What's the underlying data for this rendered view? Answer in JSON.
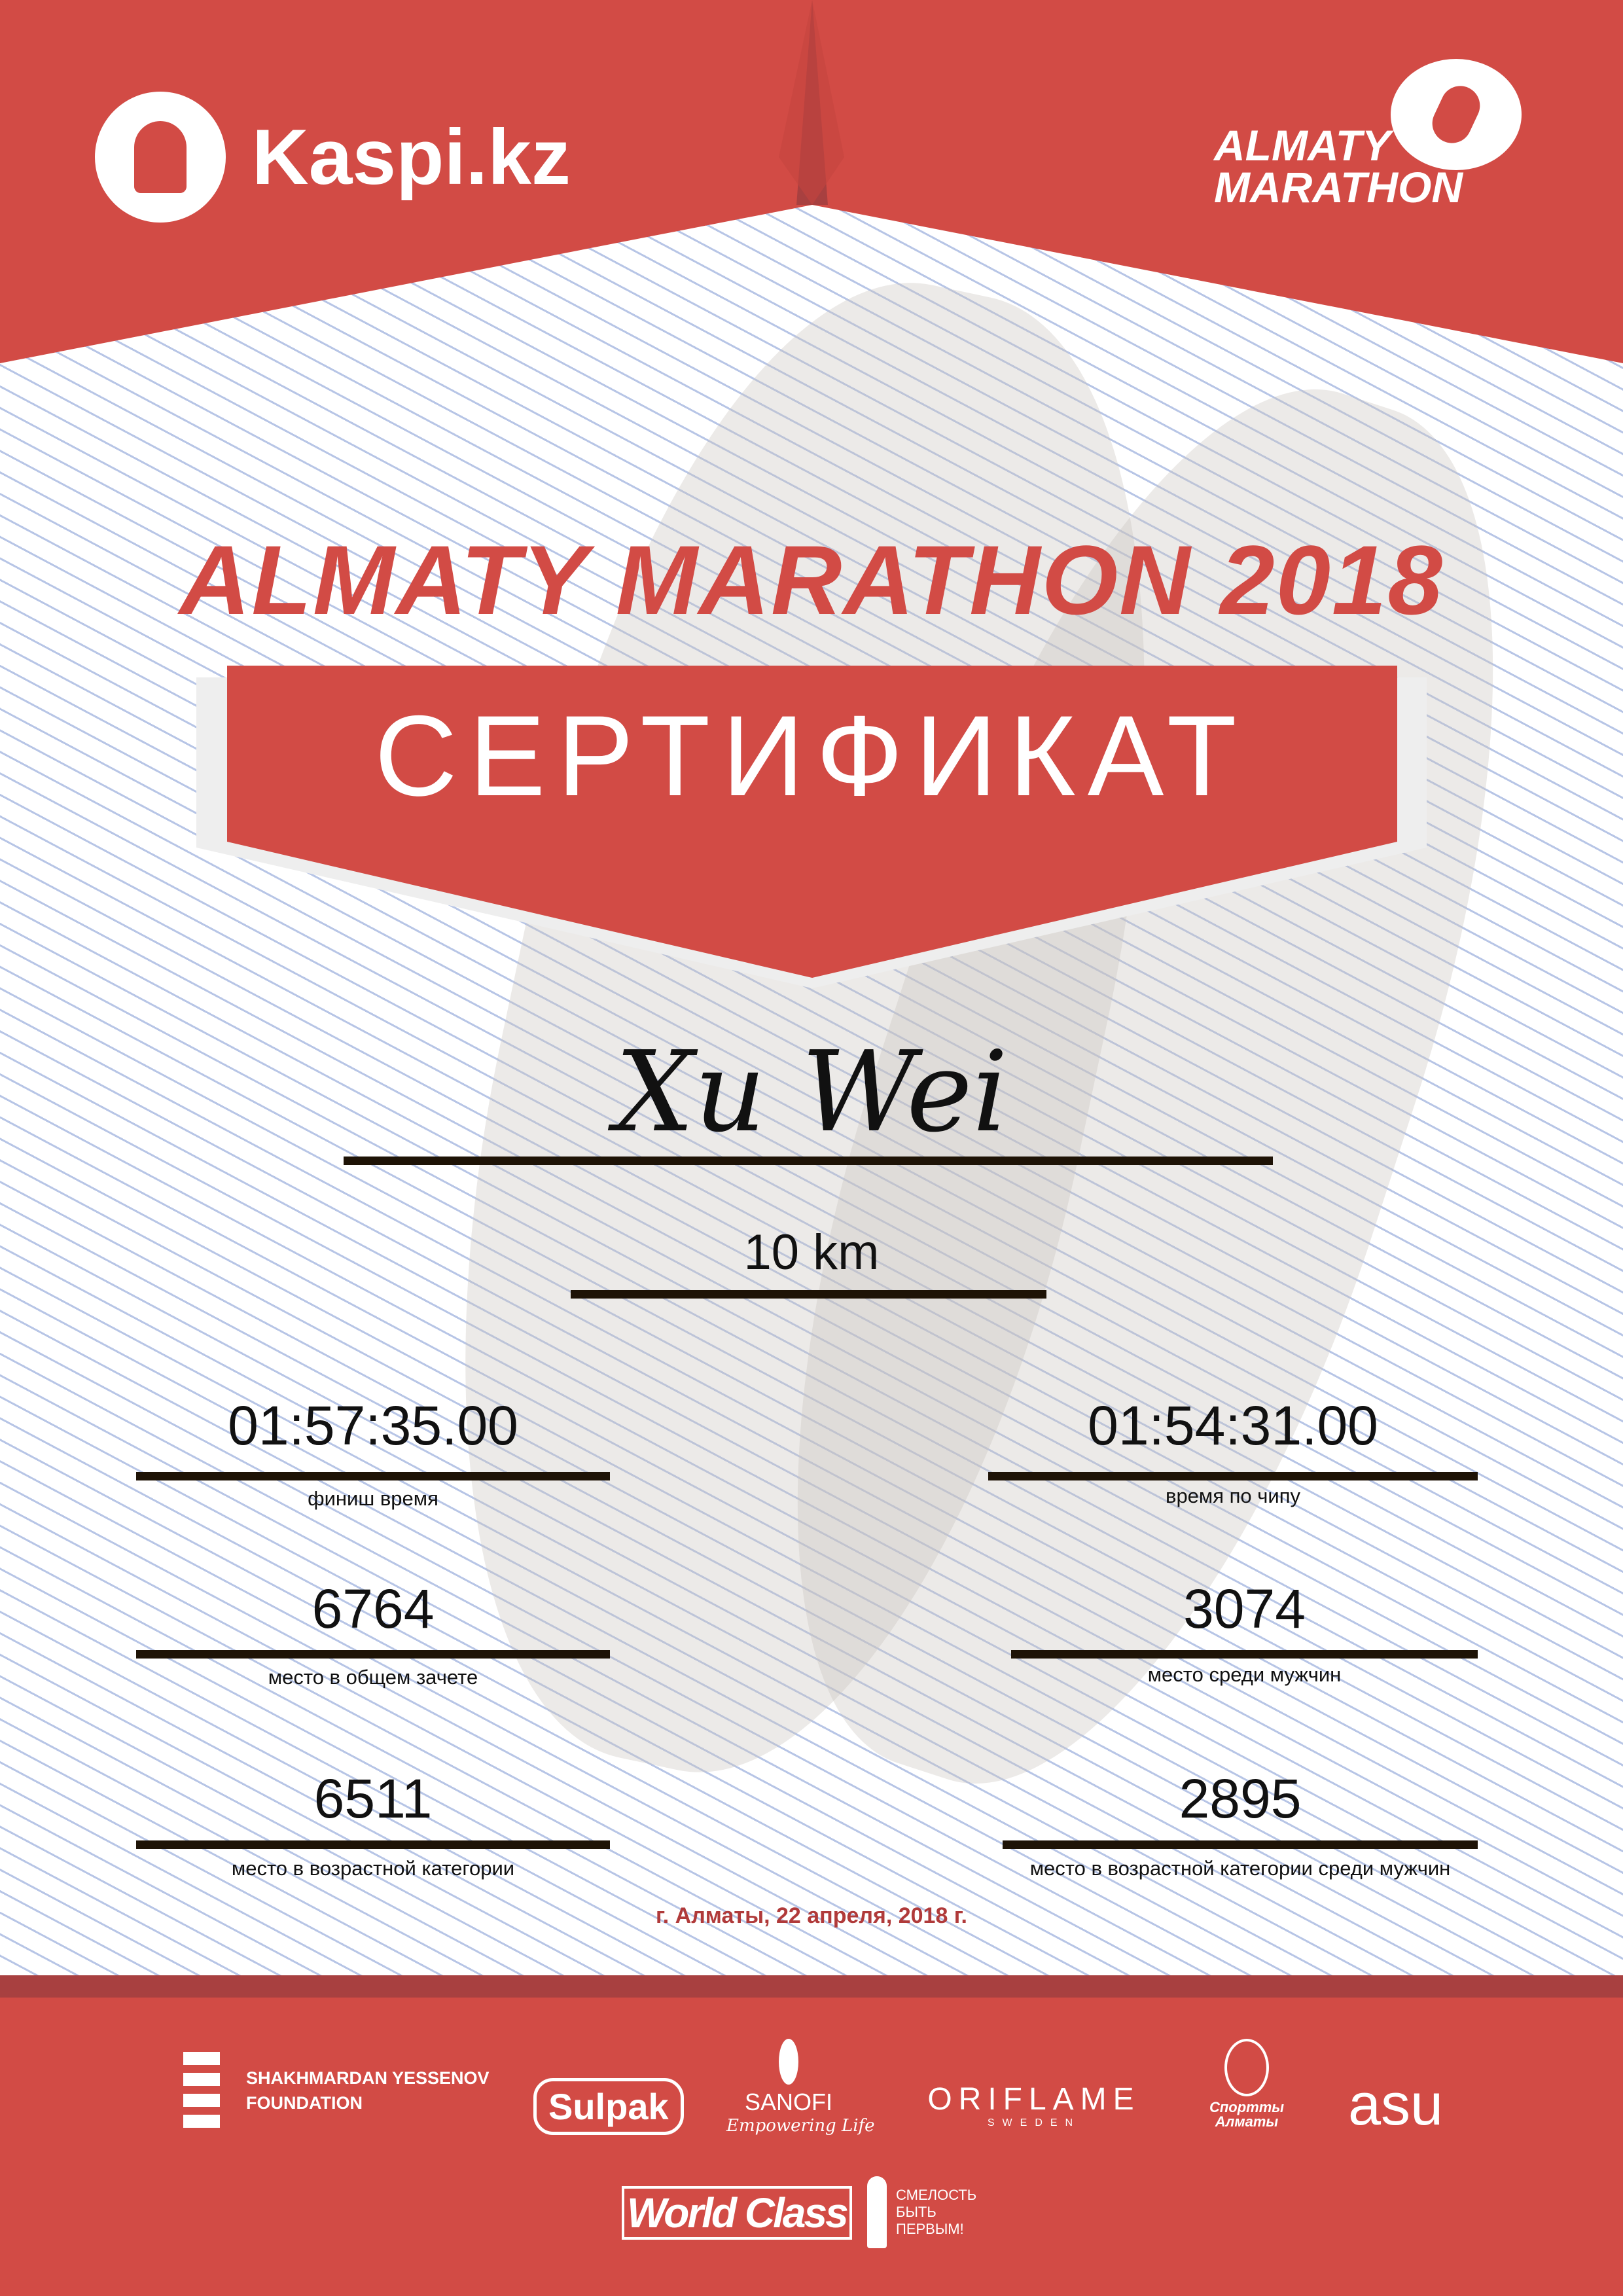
{
  "colors": {
    "brand_red": "#d24b45",
    "dark_red": "#a84040",
    "date_red": "#b03a3a",
    "rule": "#1e1306"
  },
  "header": {
    "sponsor_logo": "Kaspi.kz",
    "event_logo": "ALMATY MARATHON"
  },
  "title": "ALMATY MARATHON 2018",
  "certificate_label": "СЕРТИФИКАТ",
  "participant": {
    "name": "Xu Wei",
    "distance": "10 km"
  },
  "stats": [
    {
      "value": "01:57:35.00",
      "label": "финиш время"
    },
    {
      "value": "01:54:31.00",
      "label": "время по чипу"
    },
    {
      "value": "6764",
      "label": "место в общем зачете"
    },
    {
      "value": "3074",
      "label": "место среди мужчин"
    },
    {
      "value": "6511",
      "label": "место в возрастной категории"
    },
    {
      "value": "2895",
      "label": "место в возрастной категории среди мужчин"
    }
  ],
  "date": "г. Алматы, 22 апреля, 2018 г.",
  "partners": {
    "yessenov": [
      "SHAKHMARDAN YESSENOV",
      "FOUNDATION"
    ],
    "sulpak": "Sulpak",
    "sanofi": [
      "SANOFI",
      "Empowering Life"
    ],
    "oriflame": [
      "ORIFLAME",
      "SWEDEN"
    ],
    "sport_almaty": "Спортты Алматы",
    "asu": "asu",
    "worldclass": "World Class",
    "smelost": "СМЕЛОСТЬ БЫТЬ ПЕРВЫМ!"
  }
}
